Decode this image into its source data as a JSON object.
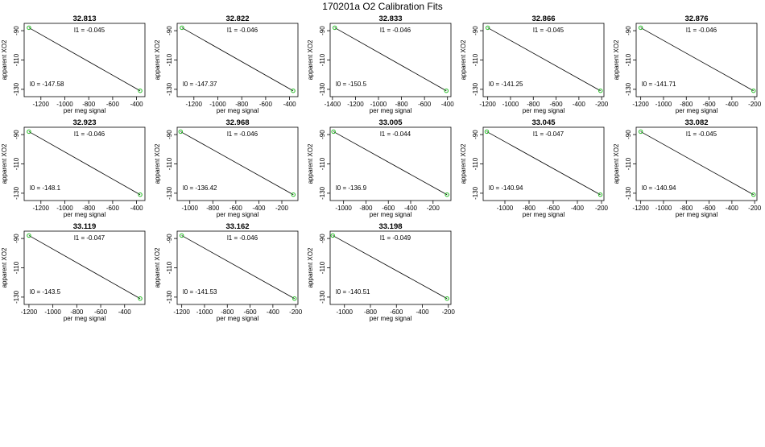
{
  "figure": {
    "title": "170201a   O2 Calibration Fits"
  },
  "colors": {
    "frame": "#000000",
    "fit_line": "#000000",
    "points": "#22bb22",
    "background": "#ffffff"
  },
  "chart_data": [
    {
      "type": "scatter",
      "title": "32.813",
      "xlabel": "per meg signal",
      "ylabel": "apparent XO2",
      "xlim": [
        -1340,
        -330
      ],
      "ylim": [
        -135,
        -85
      ],
      "x_ticks": [
        -1200,
        -1000,
        -800,
        -600,
        -400
      ],
      "x_tick_labels": [
        "-1200",
        "-1000",
        "-800",
        "-600",
        "-400"
      ],
      "y_ticks": [
        -130,
        -110,
        -90
      ],
      "y_tick_labels": [
        "-130",
        "-110",
        "-90"
      ],
      "annotations": {
        "l1": "l1 =  -0.045",
        "l0": "l0 =  -147.58"
      },
      "points": [
        {
          "x": -1300,
          "y": -88
        },
        {
          "x": -370,
          "y": -131
        }
      ],
      "grid": false,
      "legend": "none"
    },
    {
      "type": "scatter",
      "title": "32.822",
      "xlabel": "per meg signal",
      "ylabel": "apparent XO2",
      "xlim": [
        -1340,
        -330
      ],
      "ylim": [
        -135,
        -85
      ],
      "x_ticks": [
        -1200,
        -1000,
        -800,
        -600,
        -400
      ],
      "x_tick_labels": [
        "-1200",
        "-1000",
        "-800",
        "-600",
        "-400"
      ],
      "y_ticks": [
        -130,
        -110,
        -90
      ],
      "y_tick_labels": [
        "-130",
        "-110",
        "-90"
      ],
      "annotations": {
        "l1": "l1 =  -0.046",
        "l0": "l0 =  -147.37"
      },
      "points": [
        {
          "x": -1300,
          "y": -88
        },
        {
          "x": -370,
          "y": -131
        }
      ],
      "grid": false,
      "legend": "none"
    },
    {
      "type": "scatter",
      "title": "32.833",
      "xlabel": "per meg signal",
      "ylabel": "apparent XO2",
      "xlim": [
        -1420,
        -370
      ],
      "ylim": [
        -135,
        -85
      ],
      "x_ticks": [
        -1400,
        -1200,
        -1000,
        -800,
        -600,
        -400
      ],
      "x_tick_labels": [
        "-1400",
        "-1200",
        "-1000",
        "-800",
        "-600",
        "-400"
      ],
      "y_ticks": [
        -130,
        -110,
        -90
      ],
      "y_tick_labels": [
        "-130",
        "-110",
        "-90"
      ],
      "annotations": {
        "l1": "l1 =  -0.046",
        "l0": "l0 =  -150.5"
      },
      "points": [
        {
          "x": -1380,
          "y": -88
        },
        {
          "x": -410,
          "y": -131
        }
      ],
      "grid": false,
      "legend": "none"
    },
    {
      "type": "scatter",
      "title": "32.866",
      "xlabel": "per meg signal",
      "ylabel": "apparent XO2",
      "xlim": [
        -1240,
        -180
      ],
      "ylim": [
        -135,
        -85
      ],
      "x_ticks": [
        -1200,
        -1000,
        -800,
        -600,
        -400,
        -200
      ],
      "x_tick_labels": [
        "-1200",
        "-1000",
        "-800",
        "-600",
        "-400",
        "-200"
      ],
      "y_ticks": [
        -130,
        -110,
        -90
      ],
      "y_tick_labels": [
        "-130",
        "-110",
        "-90"
      ],
      "annotations": {
        "l1": "l1 =  -0.045",
        "l0": "l0 =  -141.25"
      },
      "points": [
        {
          "x": -1200,
          "y": -88
        },
        {
          "x": -210,
          "y": -131
        }
      ],
      "grid": false,
      "legend": "none"
    },
    {
      "type": "scatter",
      "title": "32.876",
      "xlabel": "per meg signal",
      "ylabel": "apparent XO2",
      "xlim": [
        -1240,
        -180
      ],
      "ylim": [
        -135,
        -85
      ],
      "x_ticks": [
        -1200,
        -1000,
        -800,
        -600,
        -400,
        -200
      ],
      "x_tick_labels": [
        "-1200",
        "-1000",
        "-800",
        "-600",
        "-400",
        "-200"
      ],
      "y_ticks": [
        -130,
        -110,
        -90
      ],
      "y_tick_labels": [
        "-130",
        "-110",
        "-90"
      ],
      "annotations": {
        "l1": "l1 =  -0.046",
        "l0": "l0 =  -141.71"
      },
      "points": [
        {
          "x": -1200,
          "y": -88
        },
        {
          "x": -210,
          "y": -131
        }
      ],
      "grid": false,
      "legend": "none"
    },
    {
      "type": "scatter",
      "title": "32.923",
      "xlabel": "per meg signal",
      "ylabel": "apparent XO2",
      "xlim": [
        -1340,
        -330
      ],
      "ylim": [
        -135,
        -85
      ],
      "x_ticks": [
        -1200,
        -1000,
        -800,
        -600,
        -400
      ],
      "x_tick_labels": [
        "-1200",
        "-1000",
        "-800",
        "-600",
        "-400"
      ],
      "y_ticks": [
        -130,
        -110,
        -90
      ],
      "y_tick_labels": [
        "-130",
        "-110",
        "-90"
      ],
      "annotations": {
        "l1": "l1 =  -0.046",
        "l0": "l0 =  -148.1"
      },
      "points": [
        {
          "x": -1300,
          "y": -88
        },
        {
          "x": -370,
          "y": -131
        }
      ],
      "grid": false,
      "legend": "none"
    },
    {
      "type": "scatter",
      "title": "32.968",
      "xlabel": "per meg signal",
      "ylabel": "apparent XO2",
      "xlim": [
        -1110,
        -60
      ],
      "ylim": [
        -135,
        -85
      ],
      "x_ticks": [
        -1000,
        -800,
        -600,
        -400,
        -200
      ],
      "x_tick_labels": [
        "-1000",
        "-800",
        "-600",
        "-400",
        "-200"
      ],
      "y_ticks": [
        -130,
        -110,
        -90
      ],
      "y_tick_labels": [
        "-130",
        "-110",
        "-90"
      ],
      "annotations": {
        "l1": "l1 =  -0.046",
        "l0": "l0 =  -136.42"
      },
      "points": [
        {
          "x": -1080,
          "y": -88
        },
        {
          "x": -100,
          "y": -131
        }
      ],
      "grid": false,
      "legend": "none"
    },
    {
      "type": "scatter",
      "title": "33.005",
      "xlabel": "per meg signal",
      "ylabel": "apparent XO2",
      "xlim": [
        -1120,
        -40
      ],
      "ylim": [
        -135,
        -85
      ],
      "x_ticks": [
        -1000,
        -800,
        -600,
        -400,
        -200
      ],
      "x_tick_labels": [
        "-1000",
        "-800",
        "-600",
        "-400",
        "-200"
      ],
      "y_ticks": [
        -130,
        -110,
        -90
      ],
      "y_tick_labels": [
        "-130",
        "-110",
        "-90"
      ],
      "annotations": {
        "l1": "l1 =  -0.044",
        "l0": "l0 =  -136.9"
      },
      "points": [
        {
          "x": -1090,
          "y": -88
        },
        {
          "x": -75,
          "y": -131
        }
      ],
      "grid": false,
      "legend": "none"
    },
    {
      "type": "scatter",
      "title": "33.045",
      "xlabel": "per meg signal",
      "ylabel": "apparent XO2",
      "xlim": [
        -1180,
        -180
      ],
      "ylim": [
        -135,
        -85
      ],
      "x_ticks": [
        -1000,
        -800,
        -600,
        -400,
        -200
      ],
      "x_tick_labels": [
        "-1000",
        "-800",
        "-600",
        "-400",
        "-200"
      ],
      "y_ticks": [
        -130,
        -110,
        -90
      ],
      "y_tick_labels": [
        "-130",
        "-110",
        "-90"
      ],
      "annotations": {
        "l1": "l1 =  -0.047",
        "l0": "l0 =  -140.94"
      },
      "points": [
        {
          "x": -1150,
          "y": -88
        },
        {
          "x": -210,
          "y": -131
        }
      ],
      "grid": false,
      "legend": "none"
    },
    {
      "type": "scatter",
      "title": "33.082",
      "xlabel": "per meg signal",
      "ylabel": "apparent XO2",
      "xlim": [
        -1240,
        -180
      ],
      "ylim": [
        -135,
        -85
      ],
      "x_ticks": [
        -1200,
        -1000,
        -800,
        -600,
        -400,
        -200
      ],
      "x_tick_labels": [
        "-1200",
        "-1000",
        "-800",
        "-600",
        "-400",
        "-200"
      ],
      "y_ticks": [
        -130,
        -110,
        -90
      ],
      "y_tick_labels": [
        "-130",
        "-110",
        "-90"
      ],
      "annotations": {
        "l1": "l1 =  -0.045",
        "l0": "l0 =  -140.94"
      },
      "points": [
        {
          "x": -1200,
          "y": -88
        },
        {
          "x": -210,
          "y": -131
        }
      ],
      "grid": false,
      "legend": "none"
    },
    {
      "type": "scatter",
      "title": "33.119",
      "xlabel": "per meg signal",
      "ylabel": "apparent XO2",
      "xlim": [
        -1240,
        -230
      ],
      "ylim": [
        -135,
        -85
      ],
      "x_ticks": [
        -1200,
        -1000,
        -800,
        -600,
        -400
      ],
      "x_tick_labels": [
        "-1200",
        "-1000",
        "-800",
        "-600",
        "-400"
      ],
      "y_ticks": [
        -130,
        -110,
        -90
      ],
      "y_tick_labels": [
        "-130",
        "-110",
        "-90"
      ],
      "annotations": {
        "l1": "l1 =  -0.047",
        "l0": "l0 =  -143.5"
      },
      "points": [
        {
          "x": -1200,
          "y": -88
        },
        {
          "x": -270,
          "y": -131
        }
      ],
      "grid": false,
      "legend": "none"
    },
    {
      "type": "scatter",
      "title": "33.162",
      "xlabel": "per meg signal",
      "ylabel": "apparent XO2",
      "xlim": [
        -1240,
        -180
      ],
      "ylim": [
        -135,
        -85
      ],
      "x_ticks": [
        -1200,
        -1000,
        -800,
        -600,
        -400,
        -200
      ],
      "x_tick_labels": [
        "-1200",
        "-1000",
        "-800",
        "-600",
        "-400",
        "-200"
      ],
      "y_ticks": [
        -130,
        -110,
        -90
      ],
      "y_tick_labels": [
        "-130",
        "-110",
        "-90"
      ],
      "annotations": {
        "l1": "l1 =  -0.046",
        "l0": "l0 =  -141.53"
      },
      "points": [
        {
          "x": -1200,
          "y": -88
        },
        {
          "x": -210,
          "y": -131
        }
      ],
      "grid": false,
      "legend": "none"
    },
    {
      "type": "scatter",
      "title": "33.198",
      "xlabel": "per meg signal",
      "ylabel": "apparent XO2",
      "xlim": [
        -1110,
        -180
      ],
      "ylim": [
        -135,
        -85
      ],
      "x_ticks": [
        -1000,
        -800,
        -600,
        -400,
        -200
      ],
      "x_tick_labels": [
        "-1000",
        "-800",
        "-600",
        "-400",
        "-200"
      ],
      "y_ticks": [
        -130,
        -110,
        -90
      ],
      "y_tick_labels": [
        "-130",
        "-110",
        "-90"
      ],
      "annotations": {
        "l1": "l1 =  -0.049",
        "l0": "l0 =  -140.51"
      },
      "points": [
        {
          "x": -1090,
          "y": -88
        },
        {
          "x": -210,
          "y": -131
        }
      ],
      "grid": false,
      "legend": "none"
    }
  ]
}
